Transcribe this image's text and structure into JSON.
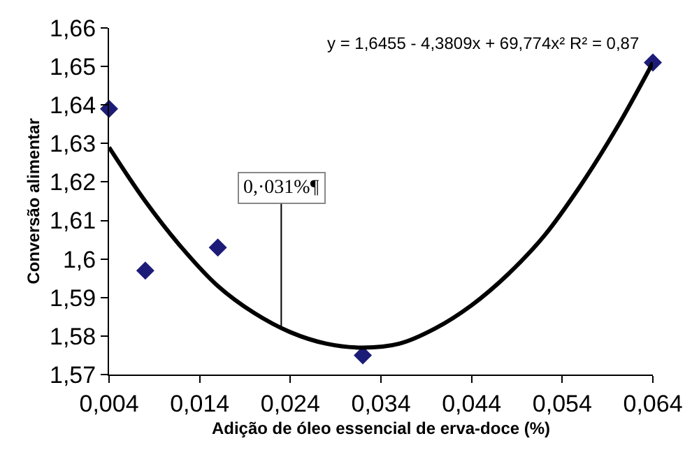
{
  "chart_data": {
    "type": "scatter",
    "xlabel": "Adição de óleo essencial de erva-doce (%)",
    "ylabel": "Conversão alimentar",
    "x": [
      0.004,
      0.008,
      0.016,
      0.032,
      0.064
    ],
    "series": [
      {
        "color": "#1c1c78",
        "values": [
          1.639,
          1.597,
          1.603,
          1.575,
          1.651
        ],
        "marker": "diamond"
      },
      {
        "type": "line",
        "color": "#000000",
        "marker": "none",
        "line_style": "solid",
        "x": [
          0.004,
          0.008,
          0.012,
          0.016,
          0.02,
          0.024,
          0.028,
          0.032,
          0.036,
          0.04,
          0.044,
          0.048,
          0.052,
          0.056,
          0.06,
          0.064
        ],
        "values": [
          1.629,
          1.615,
          1.603,
          1.593,
          1.586,
          1.581,
          1.578,
          1.577,
          1.578,
          1.582,
          1.588,
          1.596,
          1.606,
          1.619,
          1.634,
          1.651
        ]
      }
    ],
    "xlim": [
      0.004,
      0.064
    ],
    "xticks": [
      {
        "value": 0.004,
        "label": "0,004"
      },
      {
        "value": 0.014,
        "label": "0,014"
      },
      {
        "value": 0.024,
        "label": "0,024"
      },
      {
        "value": 0.034,
        "label": "0,034"
      },
      {
        "value": 0.044,
        "label": "0,044"
      },
      {
        "value": 0.054,
        "label": "0,054"
      },
      {
        "value": 0.064,
        "label": "0,064"
      }
    ],
    "ylim": [
      1.57,
      1.66
    ],
    "yticks": [
      {
        "value": 1.57,
        "label": "1,57"
      },
      {
        "value": 1.58,
        "label": "1,58"
      },
      {
        "value": 1.59,
        "label": "1,59"
      },
      {
        "value": 1.6,
        "label": "1,6"
      },
      {
        "value": 1.61,
        "label": "1,61"
      },
      {
        "value": 1.62,
        "label": "1,62"
      },
      {
        "value": 1.63,
        "label": "1,63"
      },
      {
        "value": 1.64,
        "label": "1,64"
      },
      {
        "value": 1.65,
        "label": "1,65"
      },
      {
        "value": 1.66,
        "label": "1,66"
      }
    ],
    "annotations": [
      "y = 1,6455 - 4,3809x + 69,774x² R² = 0,87",
      {
        "text": "0,·031%¶",
        "x": 0.023,
        "y": 1.582
      }
    ],
    "grid": false
  }
}
